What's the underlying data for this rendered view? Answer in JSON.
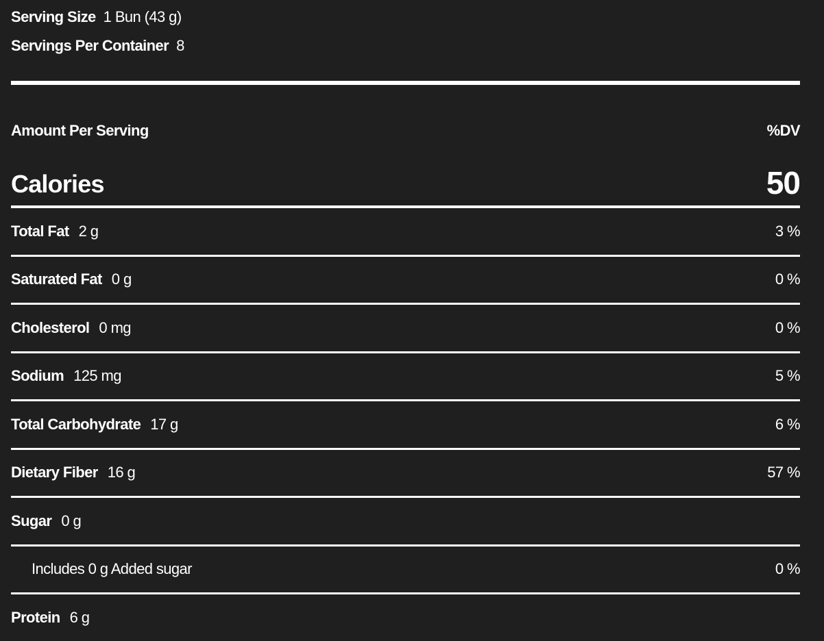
{
  "serving": {
    "size_label": "Serving Size",
    "size_value": "1 Bun (43 g)",
    "per_container_label": "Servings Per Container",
    "per_container_value": "8"
  },
  "amount_per_serving": "Amount Per Serving",
  "dv_header": "%DV",
  "calories": {
    "label": "Calories",
    "value": "50"
  },
  "nutrients": [
    {
      "name": "Total Fat",
      "amount": "2 g",
      "dv": "3 %"
    },
    {
      "name": "Saturated Fat",
      "amount": "0 g",
      "dv": "0 %"
    },
    {
      "name": "Cholesterol",
      "amount": "0 mg",
      "dv": "0 %"
    },
    {
      "name": "Sodium",
      "amount": "125 mg",
      "dv": "5 %"
    },
    {
      "name": "Total Carbohydrate",
      "amount": "17 g",
      "dv": "6 %"
    },
    {
      "name": "Dietary Fiber",
      "amount": "16 g",
      "dv": "57 %"
    },
    {
      "name": "Sugar",
      "amount": "0 g",
      "dv": ""
    },
    {
      "name": "",
      "amount": "Includes 0 g Added sugar",
      "dv": "0 %",
      "indent": true
    },
    {
      "name": "Protein",
      "amount": "6 g",
      "dv": ""
    }
  ]
}
